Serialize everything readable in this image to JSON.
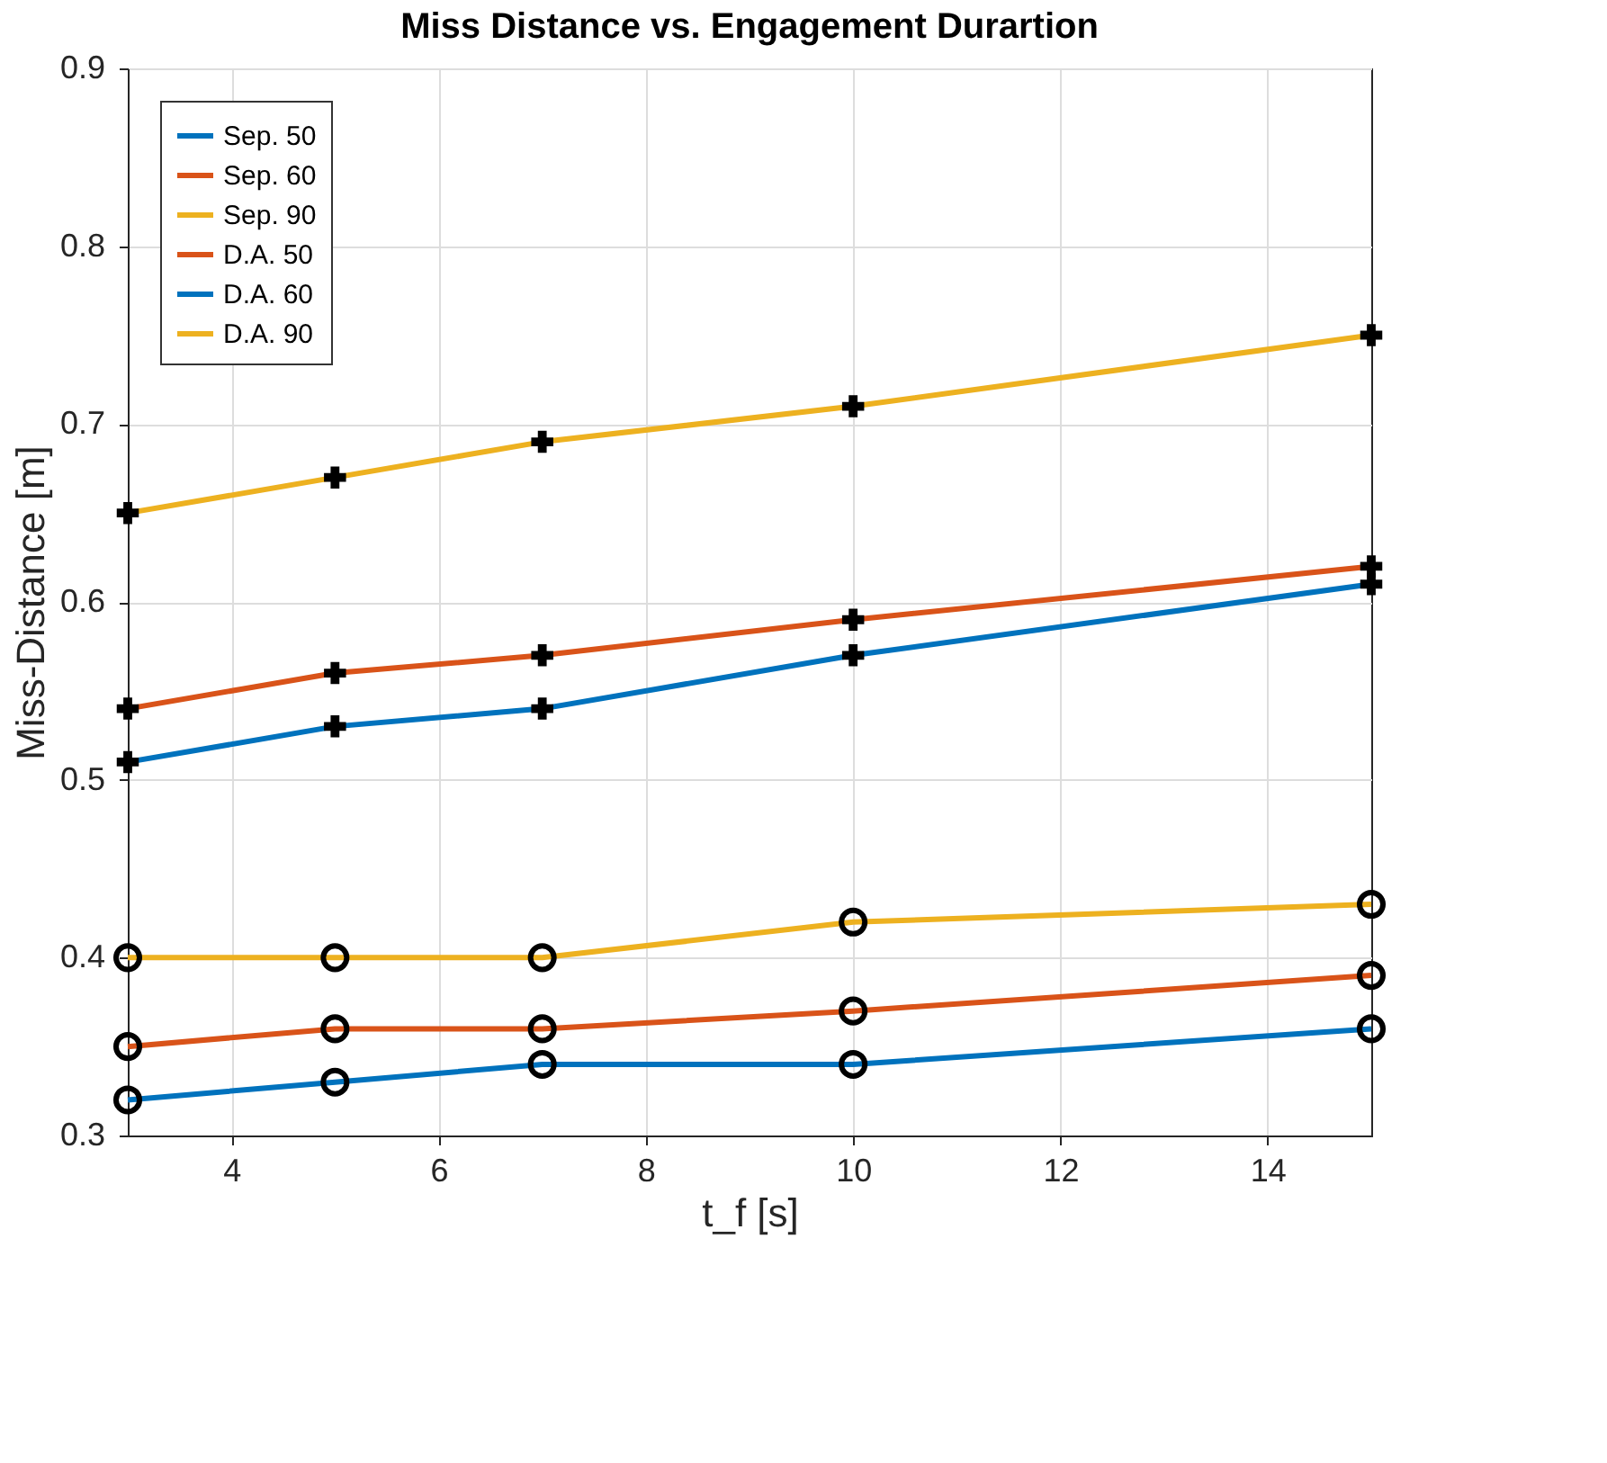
{
  "chart_data": {
    "type": "line",
    "title": "Miss Distance vs. Engagement Durartion",
    "xlabel": "t_f [s]",
    "ylabel": "Miss-Distance [m]",
    "x": [
      3,
      5,
      7,
      10,
      15
    ],
    "series": [
      {
        "name": "Sep. 50",
        "color": "#0072bd",
        "marker": "cross",
        "values": [
          0.51,
          0.53,
          0.54,
          0.57,
          0.61
        ]
      },
      {
        "name": "Sep. 60",
        "color": "#d95319",
        "marker": "cross",
        "values": [
          0.54,
          0.56,
          0.57,
          0.59,
          0.62
        ]
      },
      {
        "name": "Sep. 90",
        "color": "#edb120",
        "marker": "cross",
        "values": [
          0.65,
          0.67,
          0.69,
          0.71,
          0.75
        ]
      },
      {
        "name": "D.A. 50",
        "color": "#d95319",
        "marker": "circle",
        "values": [
          0.35,
          0.36,
          0.36,
          0.37,
          0.39
        ]
      },
      {
        "name": "D.A. 60",
        "color": "#0072bd",
        "marker": "circle",
        "values": [
          0.32,
          0.33,
          0.34,
          0.34,
          0.36
        ]
      },
      {
        "name": "D.A. 90",
        "color": "#edb120",
        "marker": "circle",
        "values": [
          0.4,
          0.4,
          0.4,
          0.42,
          0.43
        ]
      }
    ],
    "xlim": [
      3,
      15
    ],
    "xticks": [
      4,
      6,
      8,
      10,
      12,
      14
    ],
    "ylim": [
      0.3,
      0.9
    ],
    "yticks": [
      0.3,
      0.4,
      0.5,
      0.6,
      0.7,
      0.8,
      0.9
    ],
    "grid": true,
    "legend": "top left",
    "line_style": "solid"
  }
}
